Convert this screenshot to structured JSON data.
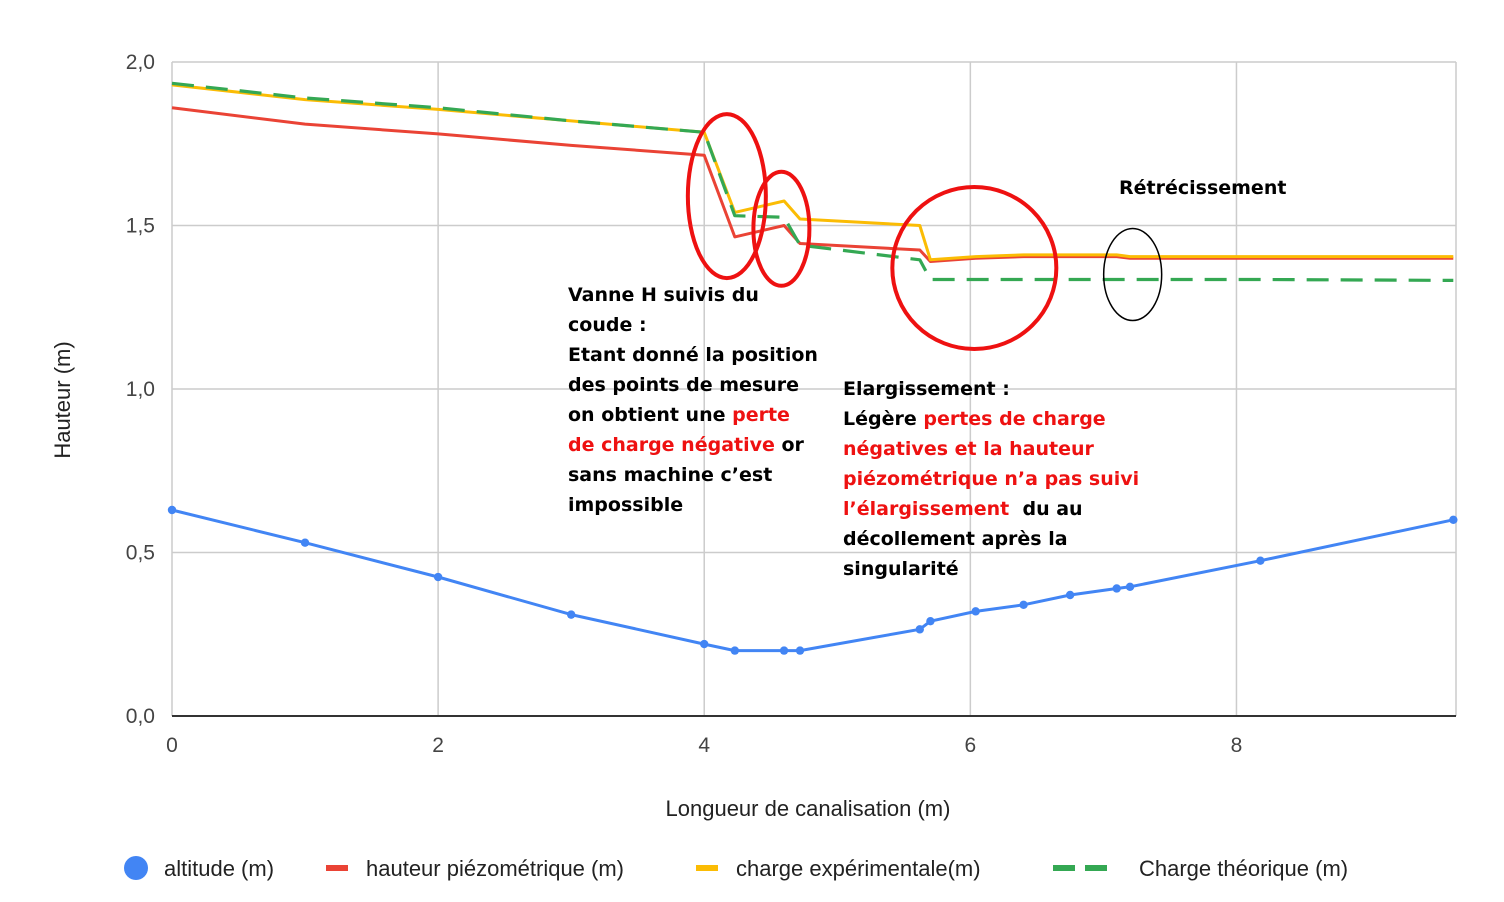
{
  "chart_data": {
    "type": "line",
    "title": "",
    "xlabel": "Longueur de canalisation (m)",
    "ylabel": "Hauteur (m)",
    "xlim": [
      0,
      9.65
    ],
    "ylim": [
      0,
      2
    ],
    "x_ticks": [
      0,
      2,
      4,
      6,
      8
    ],
    "x_tick_labels": [
      "0",
      "2",
      "4",
      "6",
      "8"
    ],
    "y_ticks": [
      0,
      0.5,
      1,
      1.5,
      2
    ],
    "y_tick_labels": [
      "0,0",
      "0,5",
      "1,0",
      "1,5",
      "2,0"
    ],
    "grid": true,
    "legend_position": "bottom",
    "series": [
      {
        "name": "altitude (m)",
        "color": "#4285f4",
        "style": "solid-markers",
        "legend_marker": "circle",
        "points": [
          [
            0,
            0.63
          ],
          [
            1,
            0.53
          ],
          [
            2,
            0.425
          ],
          [
            3,
            0.31
          ],
          [
            4,
            0.22
          ],
          [
            4.23,
            0.2
          ],
          [
            4.6,
            0.2
          ],
          [
            4.72,
            0.2
          ],
          [
            5.62,
            0.265
          ],
          [
            5.7,
            0.29
          ],
          [
            6.04,
            0.32
          ],
          [
            6.4,
            0.34
          ],
          [
            6.75,
            0.37
          ],
          [
            7.1,
            0.39
          ],
          [
            7.2,
            0.395
          ],
          [
            8.18,
            0.475
          ],
          [
            9.63,
            0.6
          ]
        ]
      },
      {
        "name": "hauteur piézométrique (m)",
        "color": "#ea4335",
        "style": "solid",
        "legend_marker": "line",
        "points": [
          [
            0,
            1.86
          ],
          [
            1,
            1.81
          ],
          [
            2,
            1.78
          ],
          [
            3,
            1.745
          ],
          [
            4,
            1.715
          ],
          [
            4.23,
            1.465
          ],
          [
            4.6,
            1.5
          ],
          [
            4.72,
            1.445
          ],
          [
            5.62,
            1.425
          ],
          [
            5.7,
            1.39
          ],
          [
            6.04,
            1.4
          ],
          [
            6.4,
            1.405
          ],
          [
            6.75,
            1.405
          ],
          [
            7.1,
            1.405
          ],
          [
            7.2,
            1.4
          ],
          [
            8.18,
            1.4
          ],
          [
            9.63,
            1.4
          ]
        ]
      },
      {
        "name": "charge expérimentale(m)",
        "color": "#fbbc04",
        "style": "solid",
        "legend_marker": "line",
        "points": [
          [
            0,
            1.93
          ],
          [
            1,
            1.885
          ],
          [
            2,
            1.855
          ],
          [
            3,
            1.82
          ],
          [
            4,
            1.785
          ],
          [
            4.23,
            1.54
          ],
          [
            4.6,
            1.575
          ],
          [
            4.72,
            1.52
          ],
          [
            5.62,
            1.5
          ],
          [
            5.7,
            1.395
          ],
          [
            6.04,
            1.405
          ],
          [
            6.4,
            1.41
          ],
          [
            6.75,
            1.41
          ],
          [
            7.1,
            1.41
          ],
          [
            7.2,
            1.405
          ],
          [
            8.18,
            1.405
          ],
          [
            9.63,
            1.405
          ]
        ]
      },
      {
        "name": "Charge théorique (m)",
        "color": "#34a853",
        "style": "dashed",
        "legend_marker": "dashed-line",
        "points": [
          [
            0,
            1.935
          ],
          [
            1,
            1.89
          ],
          [
            2,
            1.86
          ],
          [
            3,
            1.82
          ],
          [
            4,
            1.785
          ],
          [
            4.23,
            1.53
          ],
          [
            4.6,
            1.525
          ],
          [
            4.72,
            1.44
          ],
          [
            5.62,
            1.395
          ],
          [
            5.7,
            1.335
          ],
          [
            6.04,
            1.335
          ],
          [
            6.4,
            1.335
          ],
          [
            6.75,
            1.335
          ],
          [
            7.1,
            1.335
          ],
          [
            7.2,
            1.335
          ],
          [
            8.18,
            1.335
          ],
          [
            9.63,
            1.332
          ]
        ]
      }
    ],
    "annotations": {
      "retrecissement": "Rétrécissement",
      "vanne": {
        "line1": "Vanne H suivis du",
        "line2": "coude :",
        "line3": "Etant donné la position",
        "line4": "des points de mesure",
        "line5_a": "on obtient une ",
        "line5_b": "perte",
        "line6_a": "de charge négative",
        "line6_b": " or",
        "line7": "sans machine c’est",
        "line8": "impossible"
      },
      "elargissement": {
        "line1": "Elargissement :",
        "line2_a": "Légère ",
        "line2_b": "pertes de charge",
        "line3": "négatives et la hauteur",
        "line4": "piézométrique n’a pas suivi",
        "line5_a": "l’élargissement",
        "line5_b": "  du au",
        "line6": "décollement après la",
        "line7": "singularité"
      },
      "highlight_circles": [
        {
          "color": "#ee1111",
          "cx": 4.17,
          "cy": 1.59
        },
        {
          "color": "#ee1111",
          "cx": 4.58,
          "cy": 1.49
        },
        {
          "color": "#ee1111",
          "cx": 6.03,
          "cy": 1.37
        },
        {
          "color": "#000000",
          "cx": 7.22,
          "cy": 1.35
        }
      ]
    }
  }
}
